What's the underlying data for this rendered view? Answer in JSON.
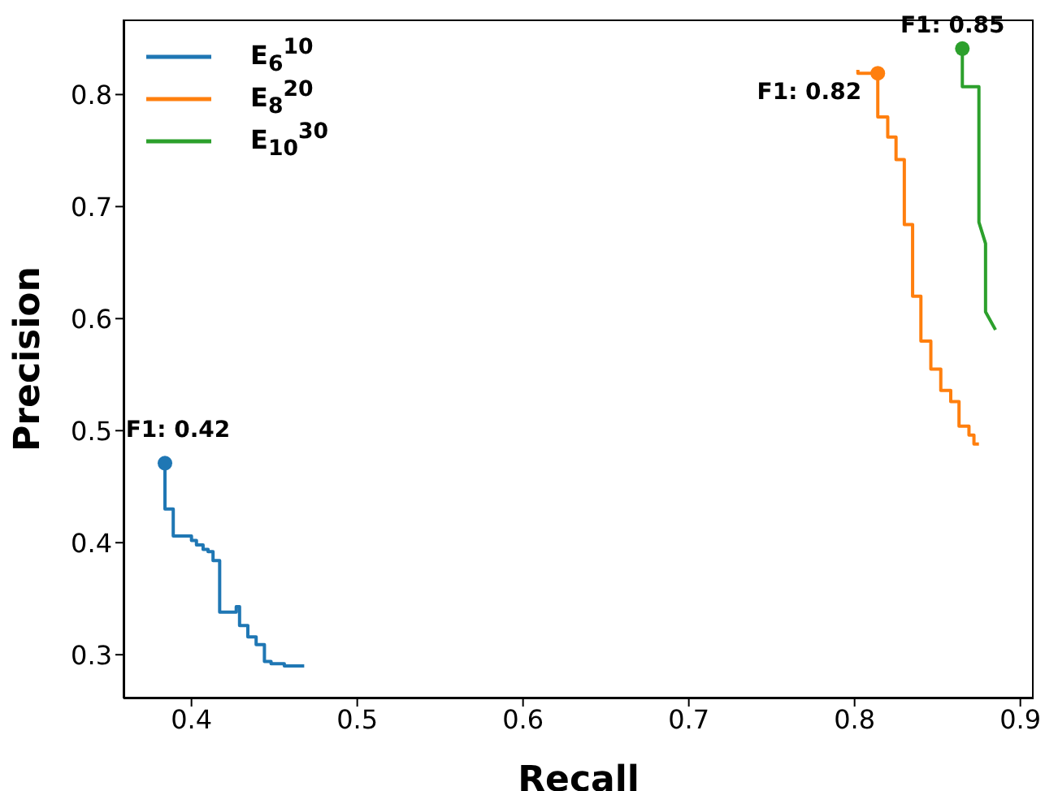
{
  "chart_data": {
    "type": "line",
    "xlabel": "Recall",
    "ylabel": "Precision",
    "xlim": [
      0.359,
      0.908
    ],
    "ylim": [
      0.261,
      0.867
    ],
    "xticks": [
      0.4,
      0.5,
      0.6,
      0.7,
      0.8,
      0.9
    ],
    "yticks": [
      0.3,
      0.4,
      0.5,
      0.6,
      0.7,
      0.8
    ],
    "grid": false,
    "legend": "top left",
    "line_style": "solid",
    "series": [
      {
        "name": "E$_{6}$$^{10}$",
        "color": "#1f77b4",
        "marker": "none",
        "x": [
          0.384,
          0.384,
          0.389,
          0.389,
          0.4,
          0.4,
          0.403,
          0.403,
          0.407,
          0.407,
          0.41,
          0.41,
          0.413,
          0.413,
          0.417,
          0.417,
          0.427,
          0.427,
          0.429,
          0.429,
          0.434,
          0.434,
          0.439,
          0.439,
          0.444,
          0.444,
          0.448,
          0.448,
          0.456,
          0.456,
          0.468
        ],
        "values": [
          0.471,
          0.43,
          0.43,
          0.406,
          0.406,
          0.402,
          0.402,
          0.398,
          0.398,
          0.394,
          0.394,
          0.392,
          0.392,
          0.384,
          0.384,
          0.338,
          0.338,
          0.343,
          0.343,
          0.326,
          0.326,
          0.316,
          0.316,
          0.309,
          0.309,
          0.294,
          0.294,
          0.292,
          0.292,
          0.29,
          0.29
        ]
      },
      {
        "name": "E$_{8}$$^{20}$",
        "color": "#ff7f0e",
        "marker": "none",
        "x": [
          0.802,
          0.802,
          0.814,
          0.814,
          0.82,
          0.82,
          0.825,
          0.825,
          0.83,
          0.83,
          0.835,
          0.835,
          0.84,
          0.84,
          0.846,
          0.846,
          0.852,
          0.852,
          0.858,
          0.858,
          0.863,
          0.863,
          0.869,
          0.869,
          0.872,
          0.872,
          0.875
        ],
        "values": [
          0.822,
          0.819,
          0.819,
          0.78,
          0.78,
          0.762,
          0.762,
          0.742,
          0.742,
          0.684,
          0.684,
          0.62,
          0.62,
          0.58,
          0.58,
          0.555,
          0.555,
          0.536,
          0.536,
          0.526,
          0.526,
          0.504,
          0.504,
          0.496,
          0.496,
          0.488,
          0.488
        ]
      },
      {
        "name": "E$_{10}$$^{30}$",
        "color": "#2ca02c",
        "marker": "none",
        "x": [
          0.865,
          0.865,
          0.875,
          0.875,
          0.879,
          0.879,
          0.885
        ],
        "values": [
          0.841,
          0.807,
          0.807,
          0.686,
          0.667,
          0.606,
          0.59
        ]
      },
      {
        "type": "scatter",
        "color": "#1f77b4",
        "marker": "circle",
        "x": [
          0.384
        ],
        "values": [
          0.471
        ]
      },
      {
        "type": "scatter",
        "color": "#ff7f0e",
        "marker": "circle",
        "x": [
          0.814
        ],
        "values": [
          0.819
        ]
      },
      {
        "type": "scatter",
        "color": "#2ca02c",
        "marker": "circle",
        "x": [
          0.865
        ],
        "values": [
          0.841
        ]
      }
    ],
    "annotations": [
      {
        "text": "F1: 0.42",
        "x": 0.384,
        "y": 0.471
      },
      {
        "text": "F1: 0.82",
        "x": 0.814,
        "y": 0.819
      },
      {
        "text": "F1: 0.85",
        "x": 0.865,
        "y": 0.841
      }
    ]
  }
}
